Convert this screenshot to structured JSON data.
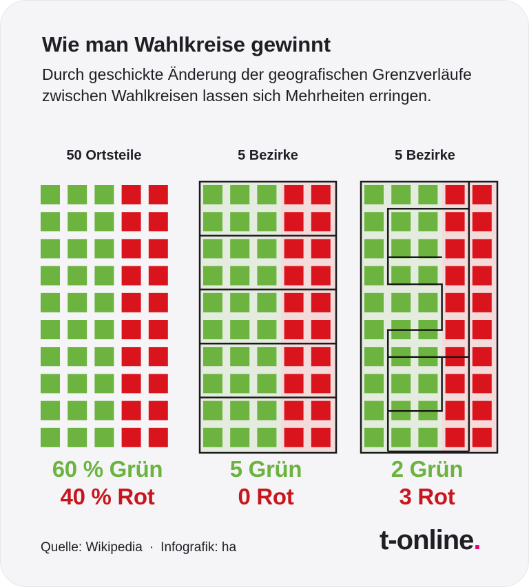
{
  "title": "Wie man Wahlkreise gewinnt",
  "subtitle": "Durch geschickte Änderung der geografischen Grenzverläufe zwischen Wahlkreisen lassen sich Mehrheiten erringen.",
  "panels": [
    {
      "label": "50 Ortsteile",
      "result_green": "60 % Grün",
      "result_red": "40 % Rot"
    },
    {
      "label": "5 Bezirke",
      "result_green": "5 Grün",
      "result_red": "0 Rot"
    },
    {
      "label": "5 Bezirke",
      "result_green": "2 Grün",
      "result_red": "3 Rot"
    }
  ],
  "grid": {
    "rows": 10,
    "cols": 5,
    "cell_pattern": [
      "G",
      "G",
      "G",
      "R",
      "R"
    ]
  },
  "colors": {
    "green": "#6cb33f",
    "red": "#d9141c",
    "green_tint": "#e4ecdf",
    "red_tint": "#f4dbdb",
    "border": "#1a1a1a",
    "result_green": "#6cb33f",
    "result_red": "#c7161d",
    "logo_accent": "#e6007e"
  },
  "footer": {
    "source": "Quelle: Wikipedia",
    "separator": "·",
    "credit": "Infografik: ha"
  },
  "logo": {
    "text": "t-online",
    "accent": "."
  }
}
